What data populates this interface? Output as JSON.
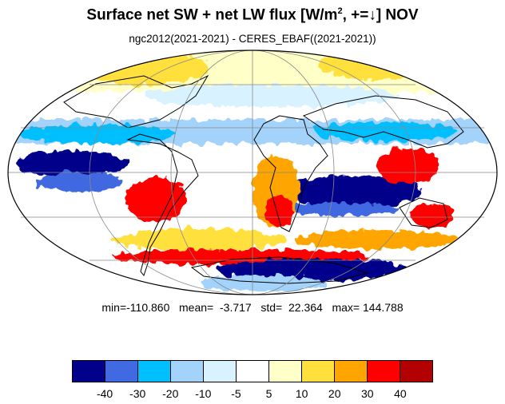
{
  "title": {
    "prefix": "Surface net SW + net LW flux  [W/m",
    "sup": "2",
    "suffix": ", +=↓]  NOV"
  },
  "subtitle": "ngc2012(2021-2021) - CERES_EBAF((2021-2021))",
  "stats": {
    "text": "min=-110.860   mean=  -3.717   std=  22.364   max= 144.788",
    "min": -110.86,
    "mean": -3.717,
    "std": 22.364,
    "max": 144.788
  },
  "projection": "mollweide",
  "colorbar": {
    "colors": [
      "#00008b",
      "#4169e1",
      "#00bfff",
      "#a3d3fb",
      "#d8f2ff",
      "#ffffff",
      "#ffffc8",
      "#ffe03c",
      "#ffa500",
      "#ff0000",
      "#b30000"
    ],
    "tick_labels": [
      "-40",
      "-30",
      "-20",
      "-10",
      "-5",
      "5",
      "10",
      "20",
      "30",
      "40"
    ]
  },
  "icons": {
    "map": "global-difference-map-mollweide"
  }
}
